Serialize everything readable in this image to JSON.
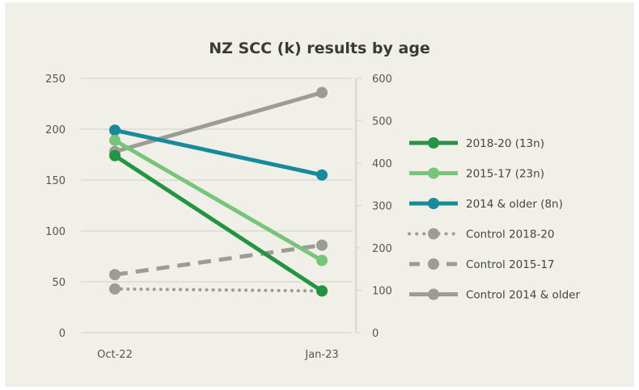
{
  "chart_data": {
    "type": "line",
    "title": "NZ SCC (k) results by age",
    "categories": [
      "Oct-22",
      "Jan-23"
    ],
    "y_left": {
      "ticks": [
        "0",
        "50",
        "100",
        "150",
        "200",
        "250"
      ],
      "range": [
        0,
        250
      ]
    },
    "y_right": {
      "ticks": [
        "0",
        "100",
        "200",
        "300",
        "400",
        "500",
        "600"
      ],
      "range": [
        0,
        600
      ]
    },
    "grid": true,
    "legend_position": "right",
    "series": [
      {
        "name": "2018-20 (13n)",
        "values": [
          174,
          41
        ],
        "color": "#239443",
        "style": "solid",
        "width": 5
      },
      {
        "name": "2015-17 (23n)",
        "values": [
          189,
          71
        ],
        "color": "#77c47a",
        "style": "solid",
        "width": 5
      },
      {
        "name": "2014 & older (8n)",
        "values": [
          199,
          155
        ],
        "color": "#188a9c",
        "style": "solid",
        "width": 5
      },
      {
        "name": "Control 2018-20",
        "values": [
          43,
          41
        ],
        "color": "#9c9c95",
        "style": "dotted",
        "width": 4
      },
      {
        "name": "Control 2015-17",
        "values": [
          57,
          86
        ],
        "color": "#9c9c95",
        "style": "dashed",
        "width": 5
      },
      {
        "name": "Control 2014 & older",
        "values": [
          178,
          236
        ],
        "color": "#9c9c95",
        "style": "solid",
        "width": 5
      }
    ]
  }
}
